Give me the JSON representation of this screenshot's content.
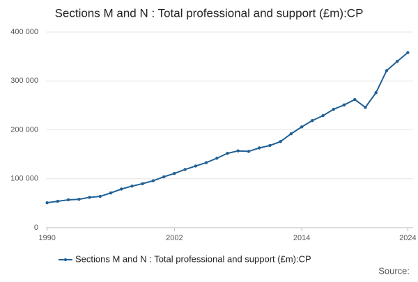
{
  "chart_data": {
    "type": "line",
    "title": "Sections M and N : Total professional and support (£m):CP",
    "source": "Source:",
    "x": [
      1990,
      1991,
      1992,
      1993,
      1994,
      1995,
      1996,
      1997,
      1998,
      1999,
      2000,
      2001,
      2002,
      2003,
      2004,
      2005,
      2006,
      2007,
      2008,
      2009,
      2010,
      2011,
      2012,
      2013,
      2014,
      2015,
      2016,
      2017,
      2018,
      2019,
      2020,
      2021,
      2022,
      2023,
      2024
    ],
    "series": [
      {
        "name": "Sections M and N : Total professional and support (£m):CP",
        "color": "#206095",
        "values": [
          51000,
          54000,
          57000,
          58000,
          62000,
          64000,
          71000,
          79000,
          85000,
          90000,
          96000,
          104000,
          111000,
          119000,
          126000,
          133000,
          142000,
          152000,
          157000,
          156000,
          163000,
          168000,
          176000,
          192000,
          206000,
          219000,
          229000,
          242000,
          251000,
          262000,
          246000,
          276000,
          321000,
          340000,
          358000
        ]
      }
    ],
    "xlim": [
      1989.5,
      2024.5
    ],
    "xticks": [
      1990,
      2002,
      2014,
      2024
    ],
    "ylim": [
      0,
      400000
    ],
    "yticks": [
      0,
      {
        "value": 100000,
        "label": "100 000"
      },
      {
        "value": 200000,
        "label": "200 000"
      },
      {
        "value": 300000,
        "label": "300 000"
      },
      {
        "value": 400000,
        "label": "400 000"
      }
    ],
    "grid": true
  }
}
